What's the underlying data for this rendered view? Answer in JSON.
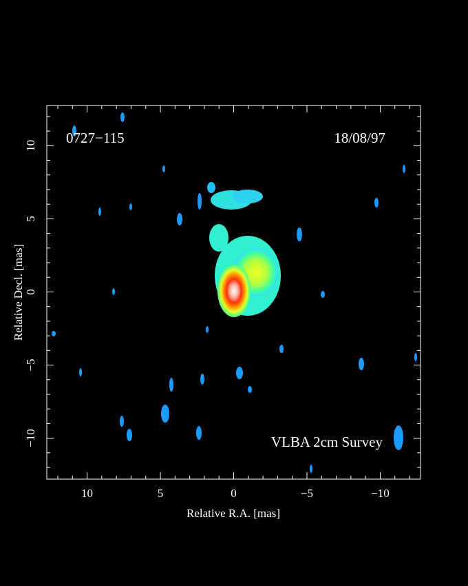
{
  "chart_data": {
    "type": "image",
    "annotations": [
      "0727−115",
      "18/08/97",
      "VLBA 2cm Survey"
    ],
    "xlabel": "Relative R.A. [mas]",
    "ylabel": "Relative Decl. [mas]",
    "xlim": [
      12.75,
      -12.75
    ],
    "ylim": [
      -12.8,
      12.75
    ],
    "xticks": [
      10,
      5,
      0,
      {
        "value": -5,
        "label": "−5"
      },
      {
        "value": -10,
        "label": "−10"
      }
    ],
    "yticks": [
      {
        "value": -10,
        "label": "−10"
      },
      {
        "value": -5,
        "label": "−5"
      },
      0,
      5,
      10
    ]
  }
}
